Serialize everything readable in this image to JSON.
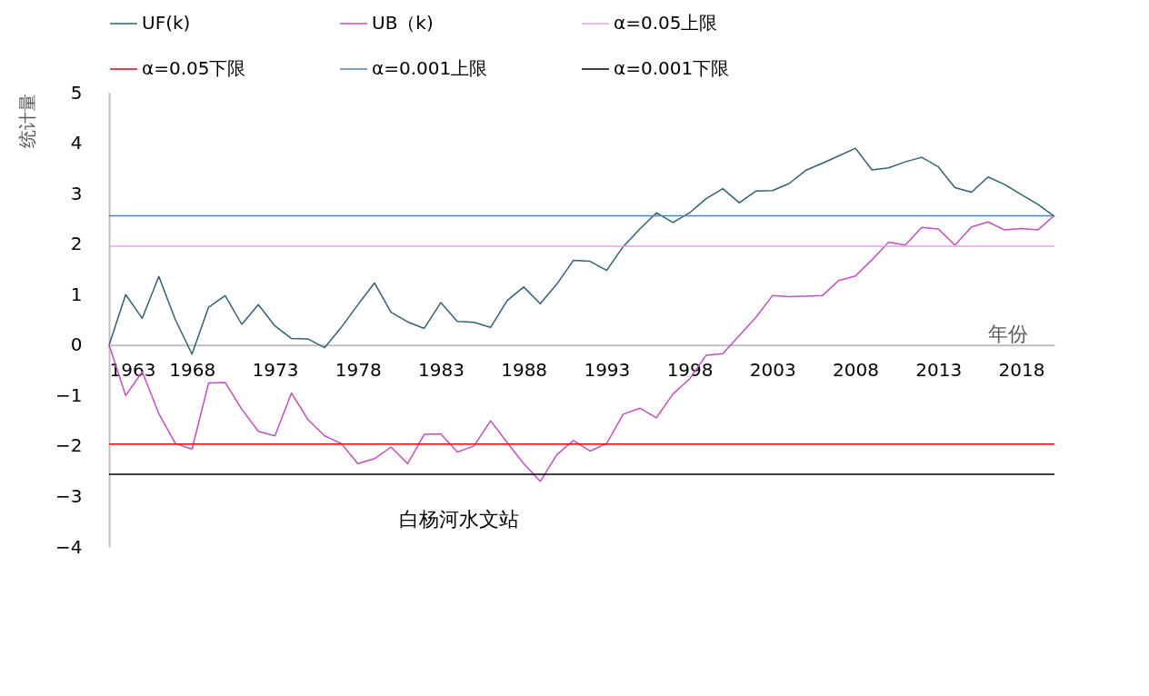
{
  "chart_data": {
    "type": "line",
    "xlabel": "年份",
    "ylabel": "统计量",
    "xlim": [
      1963,
      2020
    ],
    "xticks": [
      1963,
      1968,
      1973,
      1978,
      1983,
      1988,
      1993,
      1998,
      2003,
      2008,
      2013,
      2018
    ],
    "ylim": [
      -4,
      5
    ],
    "yticks": [
      -4,
      -3,
      -2,
      -1,
      0,
      1,
      2,
      3,
      4,
      5
    ],
    "grid": false,
    "legend": "top",
    "annotations": [
      "白杨河水文站"
    ],
    "x": [
      1963,
      1964,
      1965,
      1966,
      1967,
      1968,
      1969,
      1970,
      1971,
      1972,
      1973,
      1974,
      1975,
      1976,
      1977,
      1978,
      1979,
      1980,
      1981,
      1982,
      1983,
      1984,
      1985,
      1986,
      1987,
      1988,
      1989,
      1990,
      1991,
      1992,
      1993,
      1994,
      1995,
      1996,
      1997,
      1998,
      1999,
      2000,
      2001,
      2002,
      2003,
      2004,
      2005,
      2006,
      2007,
      2008,
      2009,
      2010,
      2011,
      2012,
      2013,
      2014,
      2015,
      2016,
      2017,
      2018,
      2019,
      2020
    ],
    "series": [
      {
        "name": "UF(k)",
        "color": "#336170",
        "values": [
          0,
          1.0,
          0.53,
          1.36,
          0.5,
          -0.18,
          0.75,
          0.98,
          0.41,
          0.8,
          0.38,
          0.13,
          0.12,
          -0.05,
          0.35,
          0.8,
          1.23,
          0.65,
          0.46,
          0.33,
          0.84,
          0.47,
          0.45,
          0.35,
          0.88,
          1.15,
          0.82,
          1.21,
          1.68,
          1.66,
          1.48,
          1.95,
          2.3,
          2.62,
          2.43,
          2.62,
          2.9,
          3.1,
          2.82,
          3.05,
          3.06,
          3.2,
          3.46,
          3.6,
          3.75,
          3.9,
          3.47,
          3.51,
          3.63,
          3.72,
          3.53,
          3.12,
          3.03,
          3.33,
          3.18,
          2.98,
          2.79,
          2.55
        ]
      },
      {
        "name": "UB（k)",
        "color": "#c050c0",
        "values": [
          0,
          -1.0,
          -0.53,
          -1.36,
          -1.95,
          -2.06,
          -0.75,
          -0.74,
          -1.27,
          -1.71,
          -1.8,
          -0.95,
          -1.48,
          -1.8,
          -1.95,
          -2.35,
          -2.25,
          -2.02,
          -2.35,
          -1.77,
          -1.76,
          -2.12,
          -2.0,
          -1.5,
          -1.93,
          -2.35,
          -2.7,
          -2.17,
          -1.89,
          -2.1,
          -1.95,
          -1.37,
          -1.25,
          -1.44,
          -0.97,
          -0.67,
          -0.2,
          -0.17,
          0.19,
          0.55,
          0.98,
          0.96,
          0.97,
          0.98,
          1.28,
          1.37,
          1.69,
          2.04,
          1.98,
          2.33,
          2.3,
          1.98,
          2.34,
          2.44,
          2.28,
          2.31,
          2.28,
          2.57
        ]
      },
      {
        "name": "α=0.05上限",
        "color": "#e6a0e6",
        "values": [
          1.96,
          1.96,
          1.96,
          1.96,
          1.96,
          1.96,
          1.96,
          1.96,
          1.96,
          1.96,
          1.96,
          1.96,
          1.96,
          1.96,
          1.96,
          1.96,
          1.96,
          1.96,
          1.96,
          1.96,
          1.96,
          1.96,
          1.96,
          1.96,
          1.96,
          1.96,
          1.96,
          1.96,
          1.96,
          1.96,
          1.96,
          1.96,
          1.96,
          1.96,
          1.96,
          1.96,
          1.96,
          1.96,
          1.96,
          1.96,
          1.96,
          1.96,
          1.96,
          1.96,
          1.96,
          1.96,
          1.96,
          1.96,
          1.96,
          1.96,
          1.96,
          1.96,
          1.96,
          1.96,
          1.96,
          1.96,
          1.96,
          1.96
        ]
      },
      {
        "name": "α=0.05下限",
        "color": "#ff0000",
        "values": [
          -1.96,
          -1.96,
          -1.96,
          -1.96,
          -1.96,
          -1.96,
          -1.96,
          -1.96,
          -1.96,
          -1.96,
          -1.96,
          -1.96,
          -1.96,
          -1.96,
          -1.96,
          -1.96,
          -1.96,
          -1.96,
          -1.96,
          -1.96,
          -1.96,
          -1.96,
          -1.96,
          -1.96,
          -1.96,
          -1.96,
          -1.96,
          -1.96,
          -1.96,
          -1.96,
          -1.96,
          -1.96,
          -1.96,
          -1.96,
          -1.96,
          -1.96,
          -1.96,
          -1.96,
          -1.96,
          -1.96,
          -1.96,
          -1.96,
          -1.96,
          -1.96,
          -1.96,
          -1.96,
          -1.96,
          -1.96,
          -1.96,
          -1.96,
          -1.96,
          -1.96,
          -1.96,
          -1.96,
          -1.96,
          -1.96,
          -1.96,
          -1.96
        ]
      },
      {
        "name": "α=0.001上限",
        "color": "#4f81bd",
        "values": [
          2.56,
          2.56,
          2.56,
          2.56,
          2.56,
          2.56,
          2.56,
          2.56,
          2.56,
          2.56,
          2.56,
          2.56,
          2.56,
          2.56,
          2.56,
          2.56,
          2.56,
          2.56,
          2.56,
          2.56,
          2.56,
          2.56,
          2.56,
          2.56,
          2.56,
          2.56,
          2.56,
          2.56,
          2.56,
          2.56,
          2.56,
          2.56,
          2.56,
          2.56,
          2.56,
          2.56,
          2.56,
          2.56,
          2.56,
          2.56,
          2.56,
          2.56,
          2.56,
          2.56,
          2.56,
          2.56,
          2.56,
          2.56,
          2.56,
          2.56,
          2.56,
          2.56,
          2.56,
          2.56,
          2.56,
          2.56,
          2.56,
          2.56
        ]
      },
      {
        "name": "α=0.001下限",
        "color": "#000000",
        "values": [
          -2.56,
          -2.56,
          -2.56,
          -2.56,
          -2.56,
          -2.56,
          -2.56,
          -2.56,
          -2.56,
          -2.56,
          -2.56,
          -2.56,
          -2.56,
          -2.56,
          -2.56,
          -2.56,
          -2.56,
          -2.56,
          -2.56,
          -2.56,
          -2.56,
          -2.56,
          -2.56,
          -2.56,
          -2.56,
          -2.56,
          -2.56,
          -2.56,
          -2.56,
          -2.56,
          -2.56,
          -2.56,
          -2.56,
          -2.56,
          -2.56,
          -2.56,
          -2.56,
          -2.56,
          -2.56,
          -2.56,
          -2.56,
          -2.56,
          -2.56,
          -2.56,
          -2.56,
          -2.56,
          -2.56,
          -2.56,
          -2.56,
          -2.56,
          -2.56,
          -2.56,
          -2.56,
          -2.56,
          -2.56,
          -2.56,
          -2.56,
          -2.56
        ]
      }
    ]
  }
}
